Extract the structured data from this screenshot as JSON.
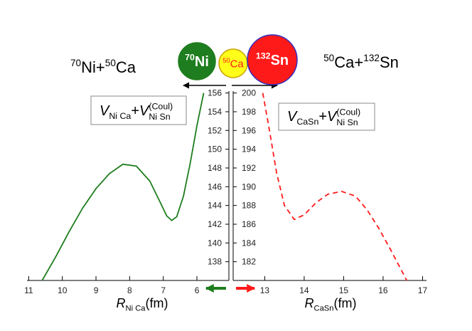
{
  "chart_data": [
    {
      "type": "line",
      "label": {
        "segments": [
          {
            "text": "70",
            "style": "sup"
          },
          {
            "text": "Ni+"
          },
          {
            "text": "50",
            "style": "sup"
          },
          {
            "text": "Ca"
          }
        ]
      },
      "formula": {
        "segments": [
          {
            "text": "V",
            "style": "italic"
          },
          {
            "text": "Ni Ca",
            "style": "sub"
          },
          {
            "text": "+"
          },
          {
            "text": "V",
            "style": "italic"
          },
          {
            "text": "(Coul)",
            "style": "sup"
          },
          {
            "text": "Ni Sn",
            "style": "substack"
          }
        ]
      },
      "x_label": {
        "segments": [
          {
            "text": "R",
            "style": "italic"
          },
          {
            "text": "Ni Ca",
            "style": "sub"
          },
          {
            "text": "(fm)"
          }
        ]
      },
      "x": [
        10.6,
        10.2,
        9.8,
        9.4,
        9.0,
        8.6,
        8.2,
        7.8,
        7.4,
        7.1,
        6.9,
        6.75,
        6.6,
        6.4,
        6.2,
        6.0,
        5.8
      ],
      "series": [
        {
          "color": "#1e7d1e",
          "dash": false,
          "values": [
            136,
            138.5,
            141.2,
            143.7,
            145.8,
            147.4,
            148.4,
            148.2,
            146.6,
            144.4,
            142.9,
            142.4,
            142.8,
            145,
            148.5,
            152.5,
            156
          ]
        }
      ],
      "xlim": [
        11.05,
        5.05
      ],
      "ylim": [
        136,
        156.2
      ],
      "xticks": [
        11,
        10,
        9,
        8,
        7,
        6
      ],
      "yticks": [
        138,
        140,
        142,
        144,
        146,
        148,
        150,
        152,
        154,
        156
      ]
    },
    {
      "type": "line",
      "label": {
        "segments": [
          {
            "text": "50",
            "style": "sup"
          },
          {
            "text": "Ca+"
          },
          {
            "text": "132",
            "style": "sup"
          },
          {
            "text": "Sn"
          }
        ]
      },
      "formula": {
        "segments": [
          {
            "text": "V",
            "style": "italic"
          },
          {
            "text": "CaSn",
            "style": "sub"
          },
          {
            "text": "+"
          },
          {
            "text": "V",
            "style": "italic"
          },
          {
            "text": "(Coul)",
            "style": "sup"
          },
          {
            "text": "Ni Sn",
            "style": "substack"
          }
        ]
      },
      "x_label": {
        "segments": [
          {
            "text": "R",
            "style": "italic"
          },
          {
            "text": "CaSn",
            "style": "sub"
          },
          {
            "text": "(fm)"
          }
        ]
      },
      "x": [
        12.95,
        13.1,
        13.3,
        13.5,
        13.75,
        14.0,
        14.3,
        14.6,
        14.95,
        15.3,
        15.6,
        15.9,
        16.2,
        16.6
      ],
      "series": [
        {
          "color": "#ff1a1a",
          "dash": true,
          "values": [
            200,
            196.5,
            191.5,
            188,
            186.5,
            187,
            188.3,
            189.2,
            189.5,
            189,
            187.5,
            185.5,
            183.2,
            180
          ]
        }
      ],
      "xlim": [
        12.2,
        17.1
      ],
      "ylim": [
        180,
        200.2
      ],
      "xticks": [
        13,
        14,
        15,
        16,
        17
      ],
      "yticks": [
        182,
        184,
        186,
        188,
        190,
        192,
        194,
        196,
        198,
        200
      ]
    }
  ],
  "nuclei": [
    {
      "color": "#1e7d1e",
      "segments": [
        {
          "text": "70",
          "style": "sup"
        },
        {
          "text": "Ni"
        }
      ]
    },
    {
      "color": "#ffff1a",
      "segments": [
        {
          "text": "50",
          "style": "sup"
        },
        {
          "text": "Ca"
        }
      ]
    },
    {
      "color": "#ff1a1a",
      "segments": [
        {
          "text": "132",
          "style": "sup"
        },
        {
          "text": "Sn"
        }
      ]
    }
  ]
}
